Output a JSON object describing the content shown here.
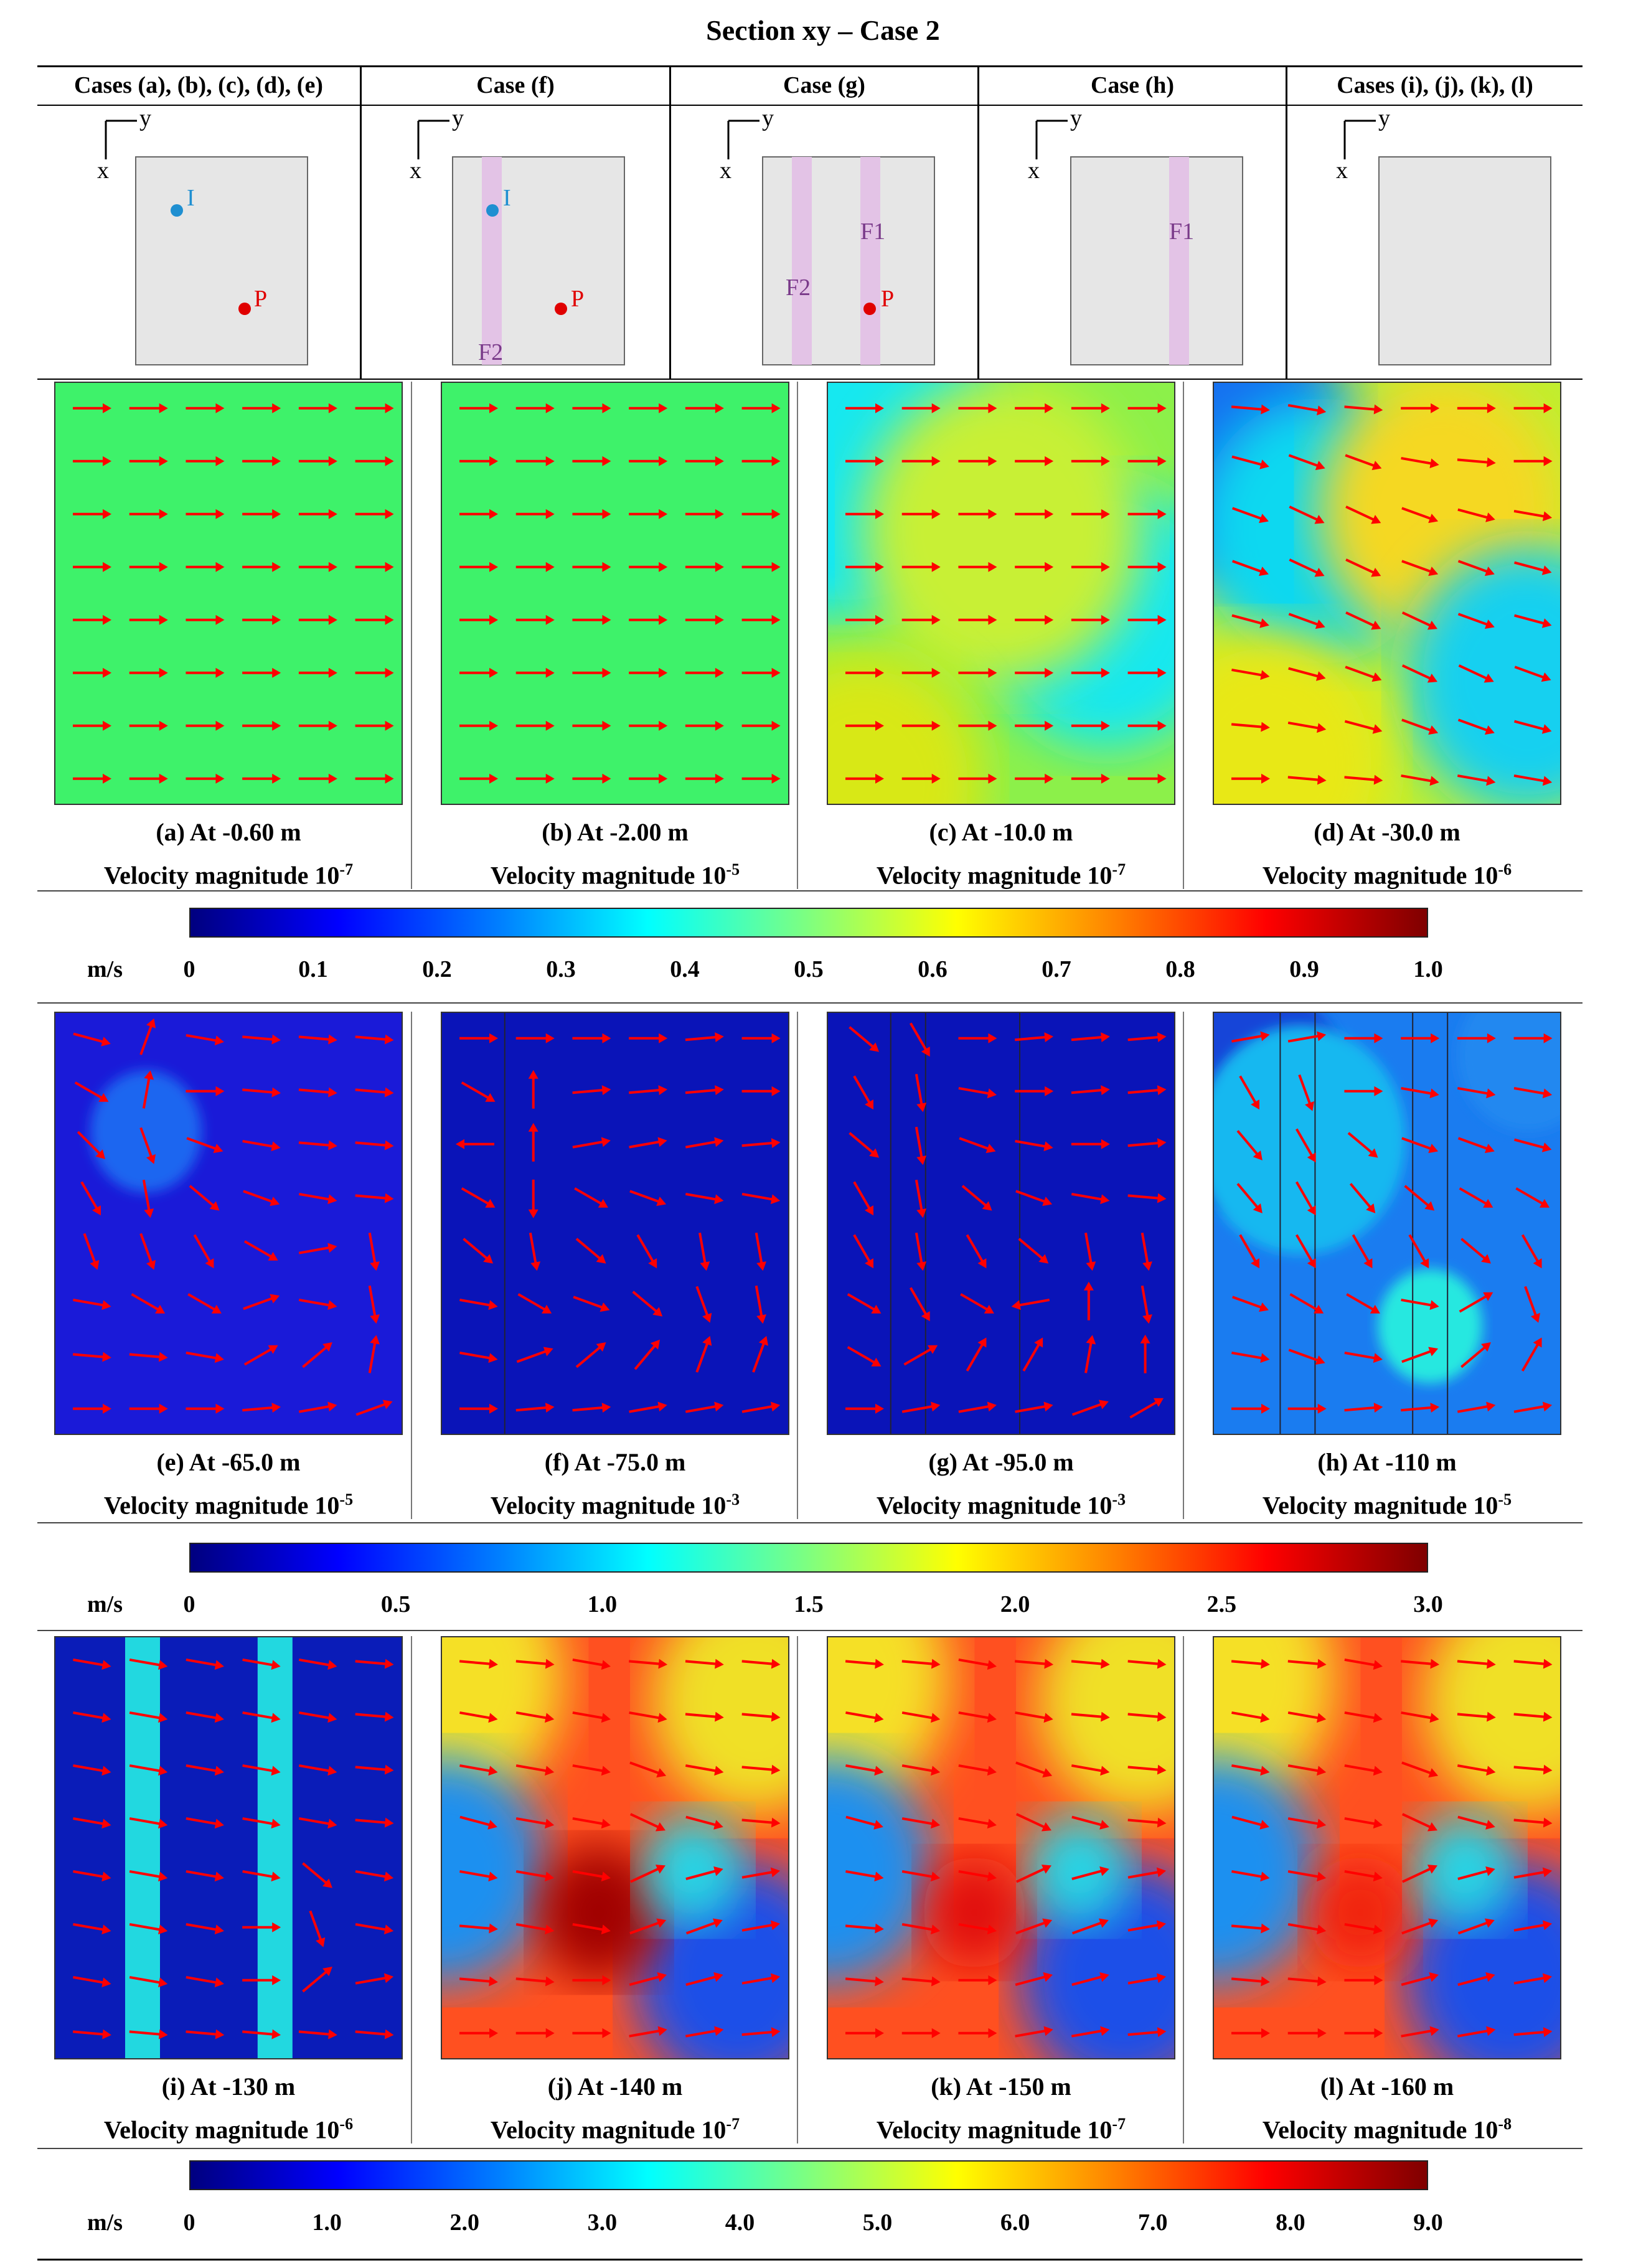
{
  "title": "Section xy – Case 2",
  "schematic": {
    "headers": [
      "Cases (a), (b), (c), (d), (e)",
      "Case (f)",
      "Case (g)",
      "Case (h)",
      "Cases (i), (j), (k), (l)"
    ],
    "axis_x": "x",
    "axis_y": "y",
    "point_i": "I",
    "point_p": "P",
    "fracture_1": "F1",
    "fracture_2": "F2"
  },
  "panels": [
    {
      "id": "a",
      "caption": "(a) At -0.60 m",
      "mag_prefix": "Velocity magnitude 10",
      "mag_exp": "-7"
    },
    {
      "id": "b",
      "caption": "(b) At -2.00 m",
      "mag_prefix": "Velocity magnitude 10",
      "mag_exp": "-5"
    },
    {
      "id": "c",
      "caption": "(c) At -10.0 m",
      "mag_prefix": "Velocity magnitude 10",
      "mag_exp": "-7"
    },
    {
      "id": "d",
      "caption": "(d) At -30.0 m",
      "mag_prefix": "Velocity magnitude 10",
      "mag_exp": "-6"
    },
    {
      "id": "e",
      "caption": "(e) At -65.0 m",
      "mag_prefix": "Velocity magnitude 10",
      "mag_exp": "-5"
    },
    {
      "id": "f",
      "caption": "(f) At -75.0 m",
      "mag_prefix": "Velocity magnitude 10",
      "mag_exp": "-3"
    },
    {
      "id": "g",
      "caption": "(g) At -95.0 m",
      "mag_prefix": "Velocity magnitude 10",
      "mag_exp": "-3"
    },
    {
      "id": "h",
      "caption": "(h) At -110 m",
      "mag_prefix": "Velocity magnitude 10",
      "mag_exp": "-5"
    },
    {
      "id": "i",
      "caption": "(i) At -130 m",
      "mag_prefix": "Velocity magnitude 10",
      "mag_exp": "-6"
    },
    {
      "id": "j",
      "caption": "(j) At -140 m",
      "mag_prefix": "Velocity magnitude 10",
      "mag_exp": "-7"
    },
    {
      "id": "k",
      "caption": "(k) At -150 m",
      "mag_prefix": "Velocity magnitude 10",
      "mag_exp": "-7"
    },
    {
      "id": "l",
      "caption": "(l) At -160 m",
      "mag_prefix": "Velocity magnitude 10",
      "mag_exp": "-8"
    }
  ],
  "colorbars": [
    {
      "unit": "m/s",
      "ticks": [
        "0",
        "0.1",
        "0.2",
        "0.3",
        "0.4",
        "0.5",
        "0.6",
        "0.7",
        "0.8",
        "0.9",
        "1.0"
      ]
    },
    {
      "unit": "m/s",
      "ticks": [
        "0",
        "0.5",
        "1.0",
        "1.5",
        "2.0",
        "2.5",
        "3.0"
      ]
    },
    {
      "unit": "m/s",
      "ticks": [
        "0",
        "1.0",
        "2.0",
        "3.0",
        "4.0",
        "5.0",
        "6.0",
        "7.0",
        "8.0",
        "9.0"
      ]
    }
  ],
  "colors": {
    "arrow": "#ff0000",
    "fracture": "#e3c3e6",
    "domain": "#e6e6e6",
    "point_i": "#1f8fd1",
    "point_p": "#e00000"
  }
}
